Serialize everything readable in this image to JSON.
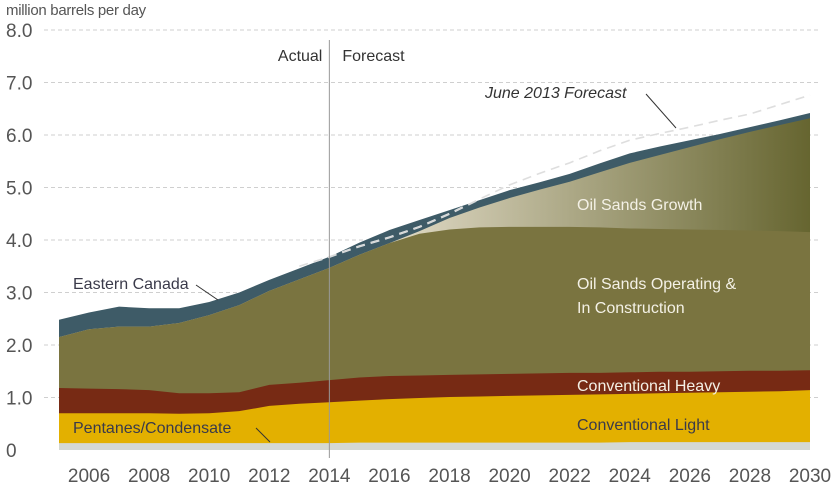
{
  "chart_data": {
    "type": "area",
    "title": "",
    "ylabel": "million barrels per day",
    "xlabel": "",
    "ylim": [
      0,
      8
    ],
    "xlim": [
      2005,
      2030
    ],
    "grid": true,
    "y_ticks": [
      "0",
      "1.0",
      "2.0",
      "3.0",
      "4.0",
      "5.0",
      "6.0",
      "7.0",
      "8.0"
    ],
    "y_tick_values": [
      0,
      1,
      2,
      3,
      4,
      5,
      6,
      7,
      8
    ],
    "x_ticks": [
      "2006",
      "2008",
      "2010",
      "2012",
      "2014",
      "2016",
      "2018",
      "2020",
      "2022",
      "2024",
      "2026",
      "2028",
      "2030"
    ],
    "x_tick_values": [
      2006,
      2008,
      2010,
      2012,
      2014,
      2016,
      2018,
      2020,
      2022,
      2024,
      2026,
      2028,
      2030
    ],
    "divider": {
      "year": 2014,
      "left_label": "Actual",
      "right_label": "Forecast"
    },
    "x": [
      2005,
      2006,
      2007,
      2008,
      2009,
      2010,
      2011,
      2012,
      2013,
      2014,
      2015,
      2016,
      2017,
      2018,
      2019,
      2020,
      2021,
      2022,
      2023,
      2024,
      2025,
      2026,
      2027,
      2028,
      2029,
      2030
    ],
    "stacked_tops": true,
    "series": [
      {
        "name": "Pentanes/Condensate",
        "color": "#d4d8d3",
        "values": [
          0.13,
          0.13,
          0.13,
          0.13,
          0.13,
          0.13,
          0.13,
          0.13,
          0.13,
          0.13,
          0.14,
          0.14,
          0.14,
          0.14,
          0.14,
          0.14,
          0.14,
          0.14,
          0.14,
          0.15,
          0.15,
          0.15,
          0.15,
          0.15,
          0.15,
          0.15
        ]
      },
      {
        "name": "Conventional Light",
        "color": "#e3b000",
        "values": [
          0.7,
          0.7,
          0.7,
          0.7,
          0.69,
          0.7,
          0.74,
          0.84,
          0.88,
          0.91,
          0.94,
          0.97,
          0.99,
          1.01,
          1.02,
          1.03,
          1.04,
          1.05,
          1.06,
          1.07,
          1.08,
          1.09,
          1.1,
          1.11,
          1.12,
          1.14
        ]
      },
      {
        "name": "Conventional Heavy",
        "color": "#772a14",
        "values": [
          1.18,
          1.17,
          1.16,
          1.14,
          1.08,
          1.08,
          1.1,
          1.24,
          1.28,
          1.33,
          1.38,
          1.41,
          1.42,
          1.43,
          1.44,
          1.45,
          1.46,
          1.47,
          1.47,
          1.48,
          1.49,
          1.49,
          1.5,
          1.51,
          1.51,
          1.52
        ]
      },
      {
        "name": "Oil Sands Operating & In Construction",
        "color": "#7a7440",
        "values": [
          2.15,
          2.3,
          2.35,
          2.35,
          2.42,
          2.57,
          2.76,
          3.03,
          3.25,
          3.47,
          3.72,
          3.94,
          4.12,
          4.2,
          4.24,
          4.25,
          4.25,
          4.25,
          4.24,
          4.22,
          4.21,
          4.2,
          4.19,
          4.18,
          4.17,
          4.15
        ]
      },
      {
        "name": "Oil Sands Growth",
        "color_start": "#ddd7c2",
        "color_end": "#666530",
        "values": [
          2.15,
          2.3,
          2.35,
          2.35,
          2.42,
          2.57,
          2.76,
          3.03,
          3.25,
          3.47,
          3.72,
          3.94,
          4.17,
          4.42,
          4.62,
          4.8,
          4.96,
          5.11,
          5.29,
          5.47,
          5.62,
          5.77,
          5.92,
          6.06,
          6.19,
          6.32
        ]
      },
      {
        "name": "Eastern Canada",
        "color": "#3e5b67",
        "values": [
          2.48,
          2.62,
          2.73,
          2.7,
          2.7,
          2.82,
          3.0,
          3.24,
          3.46,
          3.68,
          3.95,
          4.19,
          4.38,
          4.57,
          4.76,
          4.95,
          5.1,
          5.26,
          5.46,
          5.65,
          5.78,
          5.9,
          6.02,
          6.15,
          6.28,
          6.42
        ]
      }
    ],
    "reference_line": {
      "name": "June 2013 Forecast",
      "style": "dashed",
      "color": "#c8c8c8",
      "x": [
        2013,
        2014,
        2015,
        2016,
        2017,
        2018,
        2019,
        2020,
        2021,
        2022,
        2023,
        2024,
        2025,
        2026,
        2027,
        2028,
        2029,
        2030
      ],
      "values": [
        3.5,
        3.68,
        3.88,
        4.05,
        4.25,
        4.5,
        4.78,
        5.05,
        5.27,
        5.47,
        5.7,
        5.9,
        6.03,
        6.15,
        6.28,
        6.4,
        6.58,
        6.76
      ]
    },
    "annotations": [
      {
        "text": "Eastern Canada",
        "style": "dark"
      },
      {
        "text": "Pentanes/Condensate",
        "style": "dark"
      },
      {
        "text": "June 2013 Forecast",
        "style": "italic"
      },
      {
        "text": "Oil Sands Growth",
        "style": "light"
      },
      {
        "text": "Oil Sands Operating &",
        "style": "light"
      },
      {
        "text": "In Construction",
        "style": "light"
      },
      {
        "text": "Conventional Heavy",
        "style": "light"
      },
      {
        "text": "Conventional Light",
        "style": "dark"
      }
    ]
  }
}
